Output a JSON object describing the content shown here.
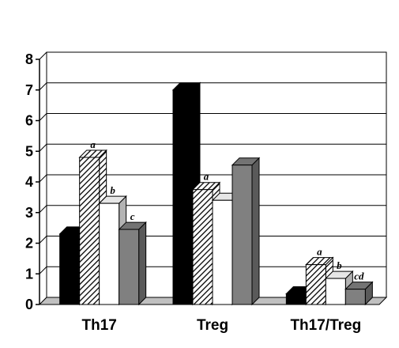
{
  "chart_data": {
    "type": "bar",
    "categories": [
      "Th17",
      "Treg",
      "Th17/Treg"
    ],
    "series": [
      {
        "values": [
          2.3,
          7.0,
          0.35
        ],
        "color": "#000000",
        "pattern": "solid"
      },
      {
        "values": [
          4.8,
          3.75,
          1.3
        ],
        "color": "#ffffff",
        "pattern": "diagonal-hatch"
      },
      {
        "values": [
          3.3,
          3.4,
          0.85
        ],
        "color": "#ffffff",
        "pattern": "solid"
      },
      {
        "values": [
          2.45,
          4.55,
          0.5
        ],
        "color": "#808080",
        "pattern": "solid"
      }
    ],
    "annotations": [
      {
        "category": 0,
        "series": 1,
        "text": "a"
      },
      {
        "category": 0,
        "series": 2,
        "text": "b"
      },
      {
        "category": 0,
        "series": 3,
        "text": "c"
      },
      {
        "category": 1,
        "series": 1,
        "text": "a"
      },
      {
        "category": 2,
        "series": 1,
        "text": "a"
      },
      {
        "category": 2,
        "series": 2,
        "text": "b"
      },
      {
        "category": 2,
        "series": 3,
        "text": "cd"
      }
    ],
    "ylim": [
      0,
      8
    ],
    "yticks": [
      "0",
      "1",
      "2",
      "3",
      "4",
      "5",
      "6",
      "7",
      "8"
    ],
    "grid": true,
    "style": "3d-columns"
  }
}
